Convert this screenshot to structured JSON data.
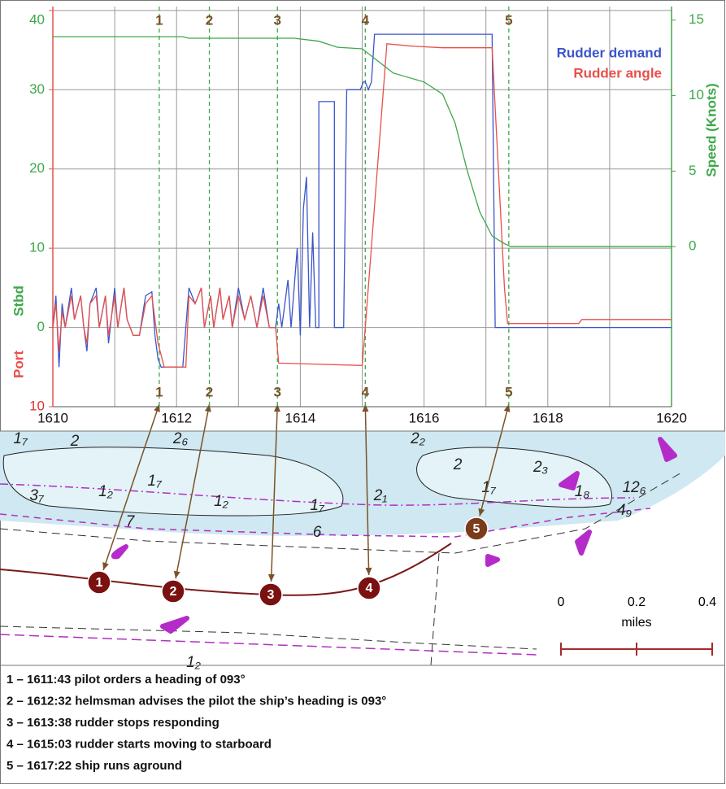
{
  "chart_data": {
    "type": "line",
    "legend_position": "top-right",
    "ylabel_upper": "Stbd",
    "ylabel_lower": "Port",
    "y2label": "Speed (Knots)",
    "xlim": [
      1610,
      1620
    ],
    "xticks": [
      1610,
      1612,
      1614,
      1616,
      1618,
      1620
    ],
    "xminorticks": [
      1611,
      1613,
      1615,
      1617,
      1619
    ],
    "ylim": [
      -10,
      40.5
    ],
    "yticks": [
      {
        "value": -10,
        "label": "10"
      },
      0,
      10,
      20,
      30,
      40
    ],
    "y2lim": [
      -10.6,
      15.9
    ],
    "y2ticks": [
      0,
      5,
      10,
      15
    ],
    "grid": true,
    "events": [
      {
        "x": 1611.72,
        "label": "1"
      },
      {
        "x": 1612.53,
        "label": "2"
      },
      {
        "x": 1613.63,
        "label": "3"
      },
      {
        "x": 1615.05,
        "label": "4"
      },
      {
        "x": 1617.37,
        "label": "5"
      }
    ],
    "series": [
      {
        "name": "Rudder demand",
        "color": "#3b55c9",
        "x": [
          1610.0,
          1610.05,
          1610.1,
          1610.15,
          1610.2,
          1610.3,
          1610.35,
          1610.45,
          1610.5,
          1610.55,
          1610.6,
          1610.7,
          1610.75,
          1610.85,
          1610.9,
          1611.0,
          1611.05,
          1611.15,
          1611.2,
          1611.3,
          1611.4,
          1611.5,
          1611.6,
          1611.65,
          1611.7,
          1611.75,
          1612.1,
          1612.15,
          1612.2,
          1612.3,
          1612.4,
          1612.45,
          1612.55,
          1612.6,
          1612.7,
          1612.75,
          1612.85,
          1612.9,
          1613.0,
          1613.1,
          1613.2,
          1613.3,
          1613.4,
          1613.5,
          1613.6,
          1613.65,
          1613.7,
          1613.8,
          1613.85,
          1613.95,
          1614.0,
          1614.05,
          1614.1,
          1614.15,
          1614.2,
          1614.25,
          1614.3,
          1614.3,
          1614.55,
          1614.55,
          1614.7,
          1614.75,
          1614.97,
          1615.02,
          1615.05,
          1615.1,
          1615.15,
          1615.2,
          1617.1,
          1617.15,
          1620.0
        ],
        "values": [
          0,
          4,
          -5,
          3,
          0,
          5,
          1,
          4,
          0,
          -3,
          3,
          5,
          0,
          4,
          -2,
          5,
          0,
          5,
          1,
          -1,
          -1,
          4,
          4.5,
          -1,
          -4,
          -5,
          -5,
          0,
          5,
          3,
          5,
          0,
          4,
          0,
          5,
          1,
          4,
          0,
          5,
          1,
          4,
          0,
          5,
          0,
          0,
          3,
          0,
          6,
          0,
          10,
          -1,
          15,
          19,
          0,
          12,
          0,
          0,
          28.5,
          28.5,
          0,
          0,
          30,
          30,
          31,
          31,
          30,
          31,
          37,
          37,
          0,
          0
        ]
      },
      {
        "name": "Rudder angle",
        "color": "#e8504a",
        "x": [
          1610.0,
          1610.05,
          1610.1,
          1610.15,
          1610.2,
          1610.3,
          1610.35,
          1610.45,
          1610.5,
          1610.55,
          1610.6,
          1610.7,
          1610.75,
          1610.85,
          1610.9,
          1611.0,
          1611.05,
          1611.15,
          1611.2,
          1611.3,
          1611.4,
          1611.5,
          1611.6,
          1611.7,
          1611.8,
          1612.15,
          1612.2,
          1612.3,
          1612.4,
          1612.45,
          1612.55,
          1612.6,
          1612.7,
          1612.75,
          1612.85,
          1612.9,
          1613.0,
          1613.1,
          1613.2,
          1613.3,
          1613.4,
          1613.5,
          1613.6,
          1613.65,
          1615.0,
          1615.05,
          1615.4,
          1615.8,
          1616.3,
          1617.1,
          1617.3,
          1617.35,
          1618.5,
          1618.55,
          1620.0
        ],
        "values": [
          0,
          3,
          -3,
          2,
          0,
          4,
          1,
          4,
          0,
          -2,
          3,
          4,
          0,
          4,
          -1,
          4,
          0,
          5,
          1,
          -1,
          -1,
          3,
          4,
          -2,
          -5,
          -5,
          4,
          3,
          5,
          0,
          4,
          0,
          5,
          1,
          4,
          0,
          4,
          1,
          4,
          0,
          4,
          0,
          0,
          -4.5,
          -4.8,
          0,
          35.8,
          35.5,
          35.3,
          35.3,
          5,
          0.5,
          0.5,
          1,
          1
        ]
      },
      {
        "name": "Speed",
        "color": "#3ea84a",
        "axis": "y2",
        "x": [
          1610.0,
          1612.1,
          1612.2,
          1613.9,
          1614.3,
          1614.6,
          1615.0,
          1615.5,
          1616.0,
          1616.3,
          1616.5,
          1616.7,
          1616.9,
          1617.1,
          1617.3,
          1617.4,
          1620.0
        ],
        "values": [
          13.9,
          13.9,
          13.8,
          13.8,
          13.6,
          13.2,
          13.1,
          11.5,
          10.9,
          10.1,
          8.2,
          5,
          2.3,
          0.7,
          0.2,
          0,
          0
        ]
      }
    ]
  },
  "map": {
    "soundings": [
      "1₇",
      "2",
      "2₆",
      "2₂",
      "2",
      "2₃",
      "1₇",
      "1₂",
      "1₂",
      "1₇",
      "2₁",
      "1₇",
      "1₈",
      "12₆",
      "3₇",
      "7",
      "6",
      "4₉",
      "1₂"
    ],
    "markers": [
      "1",
      "2",
      "3",
      "4",
      "5"
    ],
    "scale": {
      "ticks": [
        "0",
        "0.2",
        "0.4"
      ],
      "unit": "miles"
    }
  },
  "notes": [
    "1 – 1611:43 pilot orders a heading of 093°",
    "2 – 1612:32 helmsman advises the pilot the ship’s heading is 093°",
    "3 – 1613:38 rudder stops responding",
    "4 – 1615:03 rudder starts moving to starboard",
    "5 – 1617:22 ship runs aground"
  ]
}
